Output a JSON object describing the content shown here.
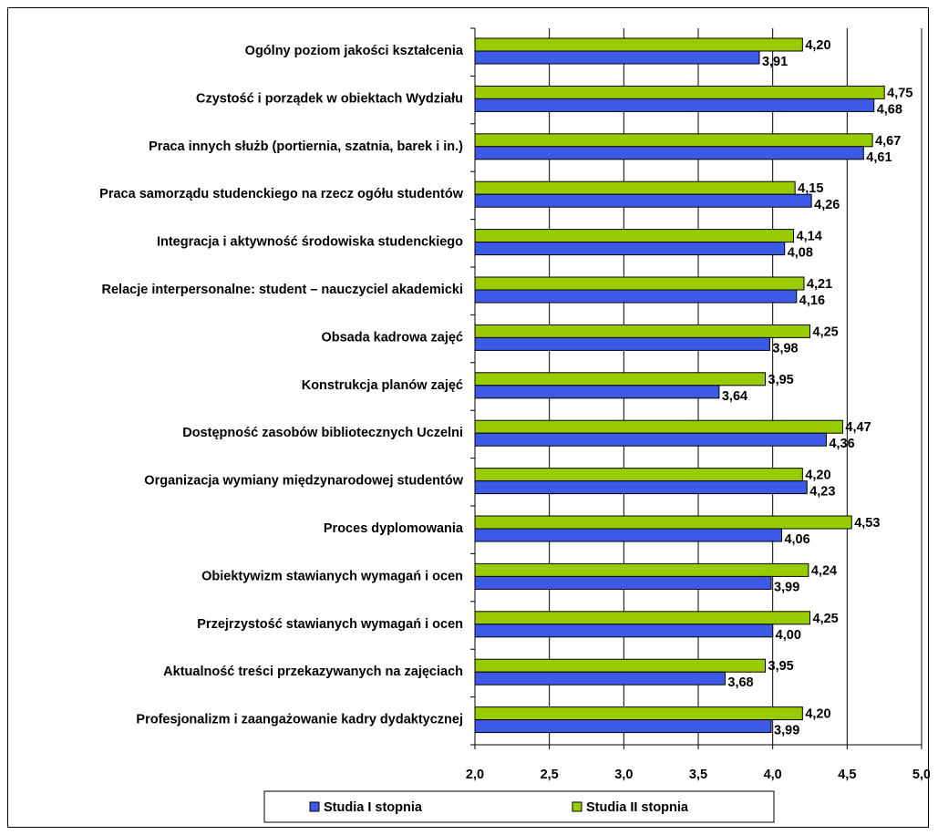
{
  "chart_data": {
    "type": "bar",
    "orientation": "horizontal",
    "categories": [
      "Ogólny poziom jakości kształcenia",
      "Czystość i porządek w obiektach Wydziału",
      "Praca innych służb (portiernia, szatnia, barek i in.)",
      "Praca samorządu studenckiego na rzecz ogółu studentów",
      "Integracja i aktywność środowiska studenckiego",
      "Relacje interpersonalne: student – nauczyciel akademicki",
      "Obsada kadrowa zajęć",
      "Konstrukcja planów zajęć",
      "Dostępność zasobów bibliotecznych Uczelni",
      "Organizacja wymiany międzynarodowej studentów",
      "Proces dyplomowania",
      "Obiektywizm stawianych wymagań i ocen",
      "Przejrzystość stawianych wymagań i ocen",
      "Aktualność treści przekazywanych na zajęciach",
      "Profesjonalizm i zaangażowanie kadry dydaktycznej"
    ],
    "series": [
      {
        "name": "Studia I stopnia",
        "color": "#3c5ae6",
        "values": [
          3.91,
          4.68,
          4.61,
          4.26,
          4.08,
          4.16,
          3.98,
          3.64,
          4.36,
          4.23,
          4.06,
          3.99,
          4.0,
          3.68,
          3.99
        ],
        "labels": [
          "3,91",
          "4,68",
          "4,61",
          "4,26",
          "4,08",
          "4,16",
          "3,98",
          "3,64",
          "4,36",
          "4,23",
          "4,06",
          "3,99",
          "4,00",
          "3,68",
          "3,99"
        ]
      },
      {
        "name": "Studia II stopnia",
        "color": "#99cc00",
        "values": [
          4.2,
          4.75,
          4.67,
          4.15,
          4.14,
          4.21,
          4.25,
          3.95,
          4.47,
          4.2,
          4.53,
          4.24,
          4.25,
          3.95,
          4.2
        ],
        "labels": [
          "4,20",
          "4,75",
          "4,67",
          "4,15",
          "4,14",
          "4,21",
          "4,25",
          "3,95",
          "4,47",
          "4,20",
          "4,53",
          "4,24",
          "4,25",
          "3,95",
          "4,20"
        ]
      }
    ],
    "xlim": [
      2.0,
      5.0
    ],
    "xticks": [
      2.0,
      2.5,
      3.0,
      3.5,
      4.0,
      4.5,
      5.0
    ],
    "xtick_labels": [
      "2,0",
      "2,5",
      "3,0",
      "3,5",
      "4,0",
      "4,5",
      "5,0"
    ],
    "grid": true,
    "legend_position": "bottom",
    "title": "",
    "xlabel": "",
    "ylabel": ""
  }
}
